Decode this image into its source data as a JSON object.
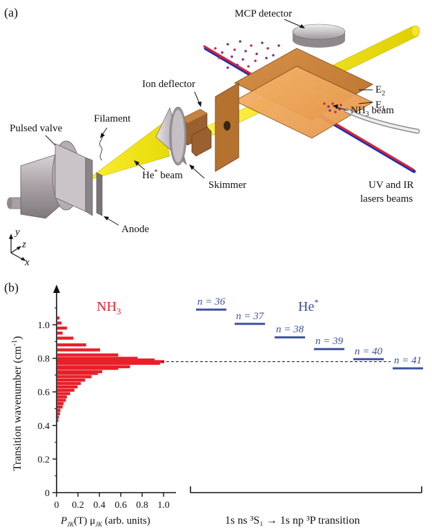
{
  "panel_a": {
    "label": "(a)",
    "labels": {
      "mcp": "MCP detector",
      "e2": "E",
      "e2_sub": "2",
      "e1": "E",
      "e1_sub": "1",
      "nh3_beam": "NH",
      "nh3_beam_sub": "3",
      "nh3_beam_suffix": " beam",
      "ion_deflector": "Ion deflector",
      "pulsed_valve": "Pulsed valve",
      "filament": "Filament",
      "he_beam": "He",
      "he_beam_sup": "*",
      "he_beam_suffix": " beam",
      "skimmer": "Skimmer",
      "lasers_line1": "UV and IR",
      "lasers_line2": "lasers beams",
      "anode": "Anode",
      "axis_x": "x",
      "axis_y": "y",
      "axis_z": "z"
    },
    "colors": {
      "plate": "#c8843a",
      "plate_light": "#f0a860",
      "beam_yellow": "#f0e600",
      "laser_red": "#e02030",
      "laser_blue": "#2030b0",
      "metal": "#b8b0b4"
    }
  },
  "panel_b": {
    "label": "(b)",
    "nh3_title": "NH",
    "nh3_title_sub": "3",
    "he_title": "He",
    "he_title_sup": "*",
    "ylabel": "Transition wavenumber (cm",
    "ylabel_sup": "-1",
    "ylabel_end": ")",
    "xlabel_parts": [
      "P",
      "JK",
      "(T) μ",
      "JK",
      "  (arb. units)"
    ],
    "transition_label": "1s ns ³S₁ → 1s np ³P transition",
    "nh3_color": "#e8202a",
    "he_color": "#3b4f9e"
  },
  "chart_data": {
    "type": "bar",
    "orientation": "horizontal",
    "title": "",
    "ylabel": "Transition wavenumber (cm-1)",
    "xlabel": "P_JK(T) μ_JK (arb. units)",
    "xlim": [
      0,
      1.0
    ],
    "ylim": [
      0,
      1.1
    ],
    "xticks": [
      0,
      0.2,
      0.4,
      0.6,
      0.8,
      1.0
    ],
    "yticks": [
      0,
      0.2,
      0.4,
      0.6,
      0.8,
      1.0
    ],
    "series": [
      {
        "name": "NH3",
        "points": [
          {
            "y": 1.04,
            "x": 0.02
          },
          {
            "y": 1.01,
            "x": 0.04
          },
          {
            "y": 0.98,
            "x": 0.09
          },
          {
            "y": 0.95,
            "x": 0.05
          },
          {
            "y": 0.92,
            "x": 0.15
          },
          {
            "y": 0.88,
            "x": 0.27
          },
          {
            "y": 0.85,
            "x": 0.4
          },
          {
            "y": 0.82,
            "x": 0.57
          },
          {
            "y": 0.8,
            "x": 0.75
          },
          {
            "y": 0.79,
            "x": 0.91
          },
          {
            "y": 0.78,
            "x": 1.0
          },
          {
            "y": 0.77,
            "x": 0.96
          },
          {
            "y": 0.75,
            "x": 0.68
          },
          {
            "y": 0.74,
            "x": 0.57
          },
          {
            "y": 0.72,
            "x": 0.42
          },
          {
            "y": 0.71,
            "x": 0.38
          },
          {
            "y": 0.69,
            "x": 0.32
          },
          {
            "y": 0.67,
            "x": 0.26
          },
          {
            "y": 0.65,
            "x": 0.22
          },
          {
            "y": 0.63,
            "x": 0.19
          },
          {
            "y": 0.61,
            "x": 0.16
          },
          {
            "y": 0.59,
            "x": 0.12
          },
          {
            "y": 0.57,
            "x": 0.09
          },
          {
            "y": 0.55,
            "x": 0.08
          },
          {
            "y": 0.53,
            "x": 0.06
          },
          {
            "y": 0.51,
            "x": 0.05
          },
          {
            "y": 0.49,
            "x": 0.03
          },
          {
            "y": 0.47,
            "x": 0.025
          },
          {
            "y": 0.45,
            "x": 0.015
          },
          {
            "y": 0.43,
            "x": 0.01
          }
        ]
      }
    ],
    "levels": [
      {
        "label": "n = 36",
        "y": 1.09
      },
      {
        "label": "n = 37",
        "y": 1.005
      },
      {
        "label": "n = 38",
        "y": 0.925
      },
      {
        "label": "n = 39",
        "y": 0.855
      },
      {
        "label": "n = 40",
        "y": 0.795
      },
      {
        "label": "n = 41",
        "y": 0.74
      }
    ],
    "reference_line_y": 0.78
  }
}
